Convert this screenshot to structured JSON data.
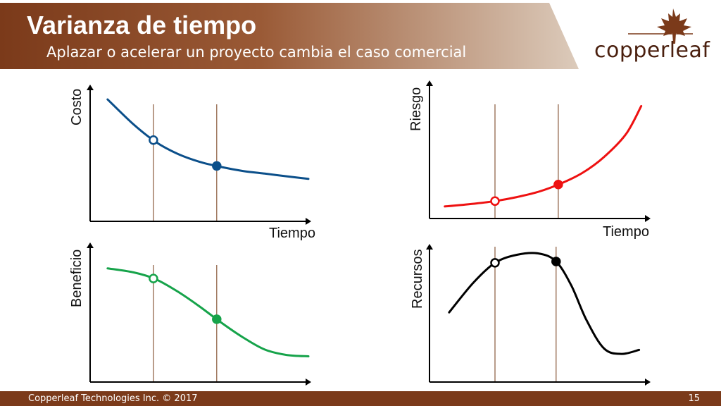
{
  "header": {
    "title": "Varianza de tiempo",
    "subtitle": "Aplazar o acelerar un proyecto cambia el caso comercial"
  },
  "logo": {
    "text": "copperleaf",
    "icon": "maple-leaf-icon"
  },
  "colors": {
    "brand_dark": "#7b3a1a",
    "brand_light": "#d9c6b4",
    "cost": "#0b4f8a",
    "risk": "#ee1111",
    "benefit": "#16a34a",
    "resources": "#000000",
    "marker_lines": "#8a5a3c"
  },
  "footer": {
    "left": "Copperleaf Technologies Inc. © 2017",
    "page_number": "15"
  },
  "chart_data": [
    {
      "type": "line",
      "ylabel": "Costo",
      "xlabel": "Tiempo",
      "color": "#0b4f8a",
      "x": [
        0.08,
        0.2,
        0.3,
        0.4,
        0.5,
        0.6,
        0.7,
        0.8,
        0.9,
        1.0
      ],
      "y": [
        0.92,
        0.73,
        0.6,
        0.51,
        0.45,
        0.41,
        0.38,
        0.36,
        0.34,
        0.32
      ],
      "markers": [
        {
          "x": 0.29,
          "style": "open"
        },
        {
          "x": 0.58,
          "style": "filled"
        }
      ]
    },
    {
      "type": "line",
      "ylabel": "Riesgo",
      "xlabel": "Tiempo",
      "color": "#ee1111",
      "x": [
        0.07,
        0.2,
        0.3,
        0.4,
        0.5,
        0.6,
        0.7,
        0.8,
        0.9,
        0.97
      ],
      "y": [
        0.09,
        0.11,
        0.13,
        0.16,
        0.2,
        0.26,
        0.34,
        0.46,
        0.63,
        0.84
      ],
      "markers": [
        {
          "x": 0.3,
          "style": "open"
        },
        {
          "x": 0.59,
          "style": "filled"
        }
      ]
    },
    {
      "type": "line",
      "ylabel": "Beneficio",
      "xlabel": "",
      "color": "#16a34a",
      "x": [
        0.08,
        0.2,
        0.3,
        0.4,
        0.5,
        0.6,
        0.7,
        0.8,
        0.9,
        1.0
      ],
      "y": [
        0.84,
        0.81,
        0.76,
        0.67,
        0.56,
        0.44,
        0.33,
        0.24,
        0.2,
        0.19
      ],
      "markers": [
        {
          "x": 0.29,
          "style": "open"
        },
        {
          "x": 0.58,
          "style": "filled"
        }
      ]
    },
    {
      "type": "line",
      "ylabel": "Recursos",
      "xlabel": "",
      "color": "#000000",
      "x": [
        0.09,
        0.2,
        0.3,
        0.4,
        0.5,
        0.58,
        0.65,
        0.72,
        0.8,
        0.88,
        0.96
      ],
      "y": [
        0.52,
        0.74,
        0.89,
        0.95,
        0.96,
        0.9,
        0.72,
        0.46,
        0.25,
        0.21,
        0.24
      ],
      "markers": [
        {
          "x": 0.3,
          "style": "open"
        },
        {
          "x": 0.58,
          "style": "filled"
        }
      ]
    }
  ]
}
